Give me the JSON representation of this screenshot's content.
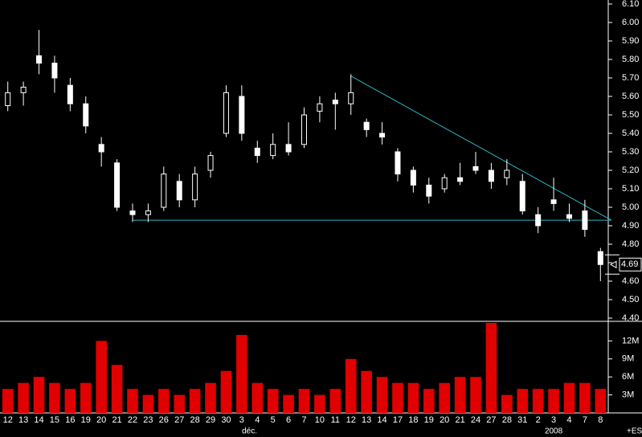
{
  "chart_data": [
    {
      "type": "candlestick",
      "categories": [
        "12",
        "13",
        "14",
        "15",
        "16",
        "19",
        "20",
        "21",
        "22",
        "23",
        "26",
        "27",
        "28",
        "29",
        "30",
        "3",
        "4",
        "5",
        "6",
        "7",
        "10",
        "11",
        "12",
        "13",
        "14",
        "17",
        "18",
        "19",
        "20",
        "21",
        "24",
        "27",
        "28",
        "31",
        "2",
        "3",
        "4",
        "7",
        "8"
      ],
      "open": [
        5.55,
        5.62,
        5.82,
        5.78,
        5.66,
        5.56,
        5.34,
        5.24,
        4.98,
        4.96,
        5.0,
        5.14,
        5.04,
        5.2,
        5.4,
        5.6,
        5.32,
        5.28,
        5.34,
        5.34,
        5.52,
        5.58,
        5.56,
        5.46,
        5.4,
        5.3,
        5.2,
        5.12,
        5.1,
        5.16,
        5.22,
        5.2,
        5.16,
        5.14,
        4.96,
        5.04,
        4.96,
        4.98,
        4.76
      ],
      "high": [
        5.68,
        5.68,
        5.96,
        5.82,
        5.7,
        5.6,
        5.38,
        5.26,
        5.02,
        5.02,
        5.22,
        5.18,
        5.22,
        5.3,
        5.66,
        5.66,
        5.36,
        5.4,
        5.46,
        5.54,
        5.6,
        5.62,
        5.72,
        5.48,
        5.46,
        5.32,
        5.22,
        5.16,
        5.18,
        5.24,
        5.3,
        5.24,
        5.26,
        5.18,
        5.0,
        5.16,
        5.02,
        5.04,
        4.78
      ],
      "low": [
        5.52,
        5.55,
        5.72,
        5.62,
        5.52,
        5.4,
        5.22,
        4.98,
        4.92,
        4.92,
        4.98,
        5.0,
        5.0,
        5.16,
        5.38,
        5.36,
        5.24,
        5.26,
        5.28,
        5.32,
        5.46,
        5.42,
        5.5,
        5.38,
        5.34,
        5.14,
        5.08,
        5.02,
        5.08,
        5.12,
        5.18,
        5.1,
        5.12,
        4.96,
        4.86,
        4.98,
        4.92,
        4.84,
        4.6
      ],
      "close": [
        5.62,
        5.65,
        5.78,
        5.7,
        5.56,
        5.44,
        5.3,
        5.0,
        4.96,
        4.98,
        5.18,
        5.04,
        5.18,
        5.28,
        5.62,
        5.4,
        5.28,
        5.34,
        5.3,
        5.5,
        5.56,
        5.56,
        5.62,
        5.42,
        5.38,
        5.18,
        5.12,
        5.06,
        5.16,
        5.14,
        5.2,
        5.14,
        5.2,
        4.98,
        4.9,
        5.02,
        4.94,
        4.88,
        4.69
      ],
      "color": "#ffffff",
      "ylim": [
        4.4,
        6.1
      ],
      "yticks": [
        {
          "value": 4.4,
          "label": "4.40"
        },
        {
          "value": 4.5,
          "label": "4.50"
        },
        {
          "value": 4.6,
          "label": "4.60"
        },
        {
          "value": 4.7,
          "label": "4.70"
        },
        {
          "value": 4.8,
          "label": "4.80"
        },
        {
          "value": 4.9,
          "label": "4.90"
        },
        {
          "value": 5.0,
          "label": "5.00"
        },
        {
          "value": 5.1,
          "label": "5.10"
        },
        {
          "value": 5.2,
          "label": "5.20"
        },
        {
          "value": 5.3,
          "label": "5.30"
        },
        {
          "value": 5.4,
          "label": "5.40"
        },
        {
          "value": 5.5,
          "label": "5.50"
        },
        {
          "value": 5.6,
          "label": "5.60"
        },
        {
          "value": 5.7,
          "label": "5.70"
        },
        {
          "value": 5.8,
          "label": "5.80"
        },
        {
          "value": 5.9,
          "label": "5.90"
        },
        {
          "value": 6.0,
          "label": "6.00"
        },
        {
          "value": 6.1,
          "label": "6.10"
        }
      ],
      "last_price": {
        "value": 4.69,
        "label": "4.69"
      },
      "trendlines": [
        {
          "x": [
            22,
            38.7
          ],
          "y": [
            5.71,
            4.93
          ],
          "color": "#2ab7c8"
        },
        {
          "x": [
            8,
            38.7
          ],
          "y": [
            4.93,
            4.93
          ],
          "color": "#2ab7c8"
        }
      ],
      "annotations": [
        {
          "text": "déc.",
          "x": 15.5
        },
        {
          "text": "2008",
          "x": 35
        }
      ],
      "footer": "+ES"
    },
    {
      "type": "bar",
      "values": [
        4,
        5,
        6,
        5,
        4,
        5,
        12,
        8,
        4,
        3,
        4,
        3,
        4,
        5,
        7,
        13,
        5,
        4,
        3,
        4,
        3,
        4,
        9,
        7,
        6,
        5,
        5,
        4,
        5,
        6,
        6,
        15,
        3,
        4,
        4,
        4,
        5,
        5,
        4
      ],
      "color": "#e00000",
      "ylim": [
        0,
        15
      ],
      "yticks": [
        {
          "value": 3,
          "label": "3M"
        },
        {
          "value": 6,
          "label": "6M"
        },
        {
          "value": 9,
          "label": "9M"
        },
        {
          "value": 12,
          "label": "12M"
        }
      ]
    }
  ]
}
